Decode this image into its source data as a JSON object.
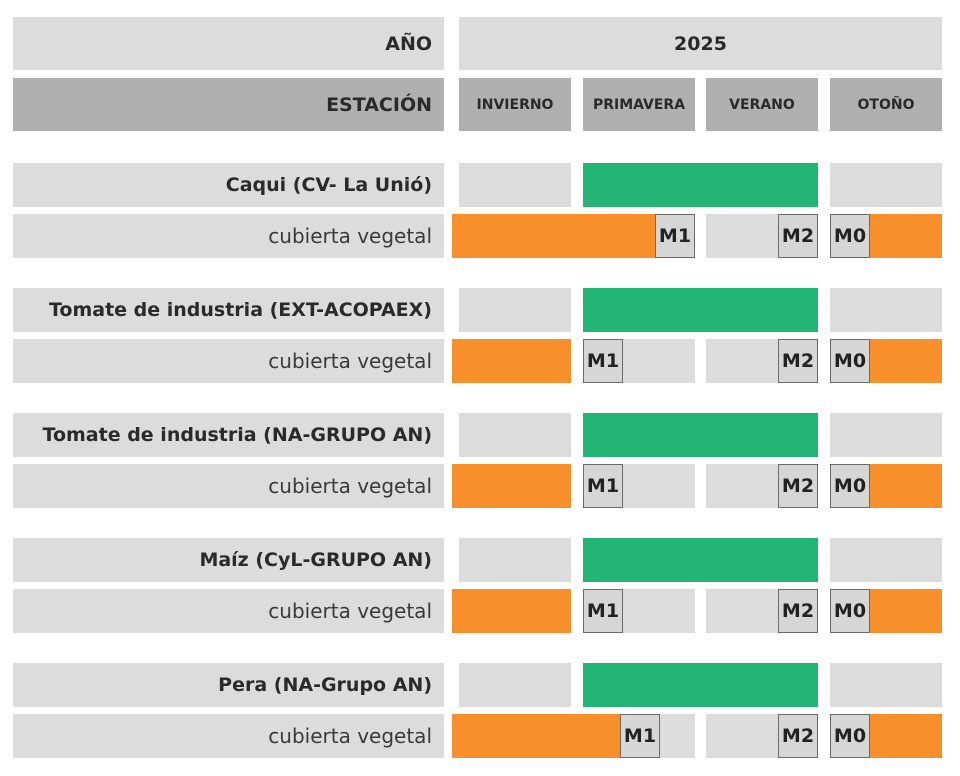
{
  "header": {
    "year_label": "AÑO",
    "year_value": "2025",
    "season_label": "ESTACIÓN",
    "seasons": [
      "INVIERNO",
      "PRIMAVERA",
      "VERANO",
      "OTOÑO"
    ]
  },
  "colors": {
    "crop_period": "#22b573",
    "cover_crop": "#f7902a",
    "empty": "#dcdcdc",
    "header_dark": "#b0b0b0"
  },
  "chart_data": {
    "type": "gantt",
    "title": "",
    "x_scale": "seasons of 2025 (INVIERNO=0..1, PRIMAVERA=1..2, VERANO=2..3, OTOÑO=3..4)",
    "crops": [
      {
        "name": "Caqui (CV- La Unió)",
        "crop_span": [
          1,
          3
        ],
        "cover_label": "cubierta vegetal",
        "cover_spans": [
          [
            0,
            1.95
          ],
          [
            3.35,
            4
          ]
        ],
        "markers": [
          {
            "label": "M1",
            "season_pos": 1.95
          },
          {
            "label": "M2",
            "season_pos": 2.95
          },
          {
            "label": "M0",
            "season_pos": 3.0
          }
        ]
      },
      {
        "name": "Tomate de industria (EXT-ACOPAEX)",
        "crop_span": [
          1,
          3
        ],
        "cover_label": "cubierta vegetal",
        "cover_spans": [
          [
            0,
            1
          ],
          [
            3.35,
            4
          ]
        ],
        "markers": [
          {
            "label": "M1",
            "season_pos": 1.0
          },
          {
            "label": "M2",
            "season_pos": 2.95
          },
          {
            "label": "M0",
            "season_pos": 3.0
          }
        ]
      },
      {
        "name": "Tomate de industria (NA-GRUPO AN)",
        "crop_span": [
          1,
          3
        ],
        "cover_label": "cubierta vegetal",
        "cover_spans": [
          [
            0,
            1
          ],
          [
            3.35,
            4
          ]
        ],
        "markers": [
          {
            "label": "M1",
            "season_pos": 1.0
          },
          {
            "label": "M2",
            "season_pos": 2.95
          },
          {
            "label": "M0",
            "season_pos": 3.0
          }
        ]
      },
      {
        "name": "Maíz (CyL-GRUPO AN)",
        "crop_span": [
          1,
          3
        ],
        "cover_label": "cubierta vegetal",
        "cover_spans": [
          [
            0,
            1
          ],
          [
            3.35,
            4
          ]
        ],
        "markers": [
          {
            "label": "M1",
            "season_pos": 1.0
          },
          {
            "label": "M2",
            "season_pos": 2.95
          },
          {
            "label": "M0",
            "season_pos": 3.0
          }
        ]
      },
      {
        "name": "Pera (NA-Grupo AN)",
        "crop_span": [
          1,
          3
        ],
        "cover_label": "cubierta vegetal",
        "cover_spans": [
          [
            0,
            1.6
          ],
          [
            3.35,
            4
          ]
        ],
        "markers": [
          {
            "label": "M1",
            "season_pos": 1.3
          },
          {
            "label": "M2",
            "season_pos": 2.95
          },
          {
            "label": "M0",
            "season_pos": 3.0
          }
        ]
      }
    ]
  }
}
